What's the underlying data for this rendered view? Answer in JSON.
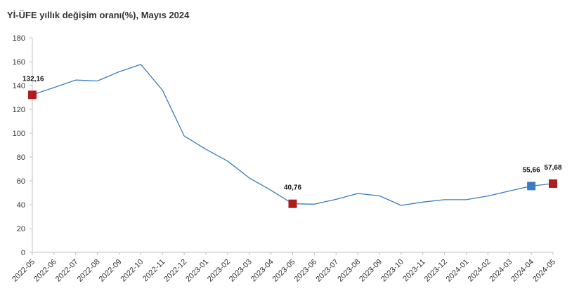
{
  "chart_data": {
    "type": "line",
    "title": "Yİ-ÜFE yıllık değişim oranı(%), Mayıs 2024",
    "xlabel": "",
    "ylabel": "",
    "ylim": [
      0,
      180
    ],
    "yticks": [
      0,
      20,
      40,
      60,
      80,
      100,
      120,
      140,
      160,
      180
    ],
    "grid": false,
    "legend": "none",
    "categories": [
      "2022-05",
      "2022-06",
      "2022-07",
      "2022-08",
      "2022-09",
      "2022-10",
      "2022-11",
      "2022-12",
      "2023-01",
      "2023-02",
      "2023-03",
      "2023-04",
      "2023-05",
      "2023-06",
      "2023-07",
      "2023-08",
      "2023-09",
      "2023-10",
      "2023-11",
      "2023-12",
      "2024-01",
      "2024-02",
      "2024-03",
      "2024-04",
      "2024-05"
    ],
    "series": [
      {
        "values": [
          132.16,
          138.3,
          144.6,
          143.8,
          151.5,
          157.7,
          136.0,
          97.7,
          86.5,
          76.6,
          62.4,
          52.1,
          40.76,
          40.4,
          44.5,
          49.4,
          47.4,
          39.4,
          42.2,
          44.2,
          44.2,
          47.3,
          51.5,
          55.66,
          57.68
        ],
        "color": "#3a7cc0"
      }
    ],
    "highlighted_points": [
      {
        "category": "2022-05",
        "label": "132,16",
        "color": "#b01b1b"
      },
      {
        "category": "2023-05",
        "label": "40,76",
        "color": "#b01b1b"
      },
      {
        "category": "2024-04",
        "label": "55,66",
        "color": "#3a7cc0"
      },
      {
        "category": "2024-05",
        "label": "57,68",
        "color": "#b01b1b"
      }
    ],
    "axis_color": "#bfbfbf"
  }
}
